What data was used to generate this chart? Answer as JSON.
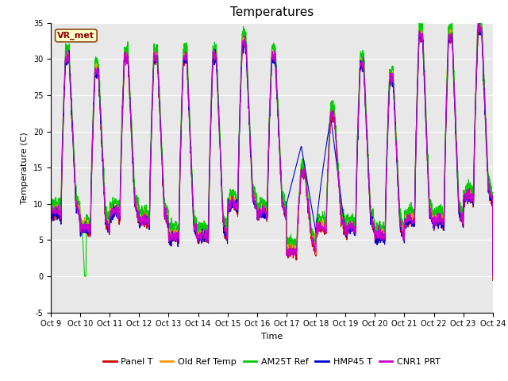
{
  "title": "Temperatures",
  "ylabel": "Temperature (C)",
  "xlabel": "Time",
  "legend_label": "VR_met",
  "series_names": [
    "Panel T",
    "Old Ref Temp",
    "AM25T Ref",
    "HMP45 T",
    "CNR1 PRT"
  ],
  "series_colors": [
    "#cc0000",
    "#ff9900",
    "#00cc00",
    "#0000cc",
    "#cc00cc"
  ],
  "ylim": [
    -5,
    35
  ],
  "xtick_labels": [
    "Oct 9",
    "Oct 10",
    "Oct 11",
    "Oct 12",
    "Oct 13",
    "Oct 14",
    "Oct 15",
    "Oct 16",
    "Oct 17",
    "Oct 18",
    "Oct 19",
    "Oct 20",
    "Oct 21",
    "Oct 22",
    "Oct 23",
    "Oct 24"
  ],
  "background_color": "#e8e8e8",
  "fig_background": "#ffffff",
  "title_fontsize": 11,
  "axis_fontsize": 8,
  "tick_fontsize": 7,
  "legend_fontsize": 8,
  "linewidth": 0.8,
  "n_points": 2160,
  "n_days": 15,
  "yticks": [
    -5,
    0,
    5,
    10,
    15,
    20,
    25,
    30,
    35
  ]
}
